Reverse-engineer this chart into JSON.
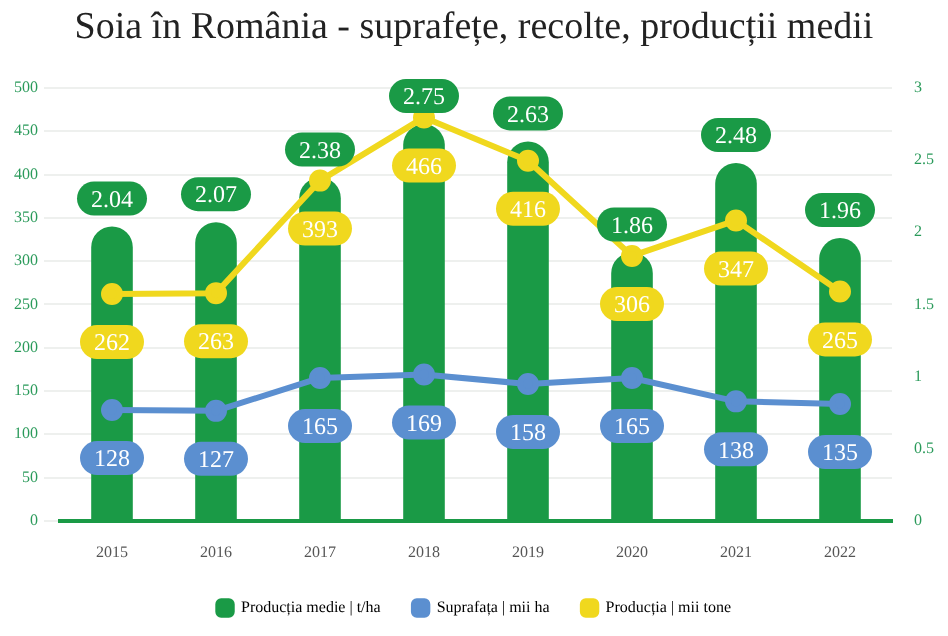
{
  "chart_data": {
    "type": "bar",
    "title": "Soia în România - suprafețe, recolte, producții medii",
    "categories": [
      "2015",
      "2016",
      "2017",
      "2018",
      "2019",
      "2020",
      "2021",
      "2022"
    ],
    "series": [
      {
        "name": "Producția medie | t/ha",
        "axis": "y2",
        "color": "#1a9a46",
        "values": [
          2.04,
          2.07,
          2.38,
          2.75,
          2.63,
          1.86,
          2.48,
          1.96
        ]
      },
      {
        "name": "Suprafața | mii ha",
        "type": "line",
        "color": "#5b8fd0",
        "values": [
          128,
          127,
          165,
          169,
          158,
          165,
          138,
          135
        ]
      },
      {
        "name": "Producția | mii tone",
        "type": "line",
        "color": "#f0d81e",
        "values": [
          262,
          263,
          393,
          466,
          416,
          306,
          347,
          265
        ]
      }
    ],
    "ylim": [
      0,
      500
    ],
    "yticks": [
      0,
      50,
      100,
      150,
      200,
      250,
      300,
      350,
      400,
      450,
      500
    ],
    "y2lim": [
      0,
      3
    ],
    "y2ticks": [
      0,
      0.5,
      1,
      1.5,
      2,
      2.5,
      3
    ],
    "grid": "y",
    "legend": "bottom",
    "marker": "circle",
    "data_labels": true
  }
}
